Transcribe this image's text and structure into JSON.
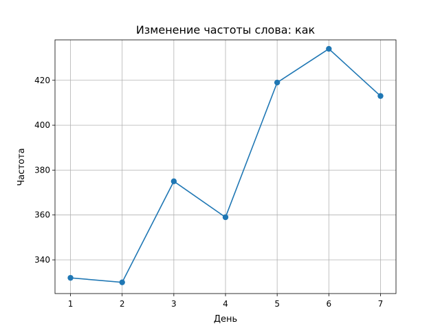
{
  "chart_data": {
    "type": "line",
    "title": "Изменение частоты слова: как",
    "xlabel": "День",
    "ylabel": "Частота",
    "x": [
      1,
      2,
      3,
      4,
      5,
      6,
      7
    ],
    "series": [
      {
        "values": [
          332,
          330,
          375,
          359,
          419,
          434,
          413
        ],
        "color": "#1f77b4",
        "marker": "circle"
      }
    ],
    "xlim": [
      0.7,
      7.3
    ],
    "ylim": [
      325,
      438
    ],
    "xticks": [
      1,
      2,
      3,
      4,
      5,
      6,
      7
    ],
    "yticks": [
      340,
      360,
      380,
      400,
      420
    ],
    "grid": true
  }
}
